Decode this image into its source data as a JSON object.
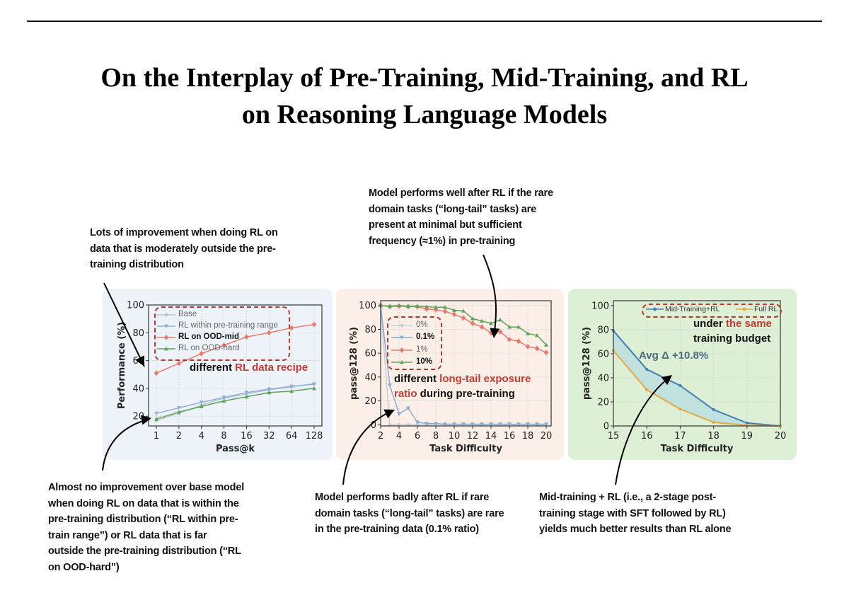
{
  "title": {
    "line1": "On the Interplay of Pre-Training, Mid-Training, and RL",
    "line2": "on Reasoning Language Models"
  },
  "annotations": {
    "top_left": [
      "Lots of improvement when doing RL on",
      "data that is moderately outside the pre-",
      "training distribution"
    ],
    "top_middle": [
      "Model performs well after RL if the rare",
      "domain tasks (“long-tail” tasks) are",
      "present at minimal but sufficient",
      "frequency (≈1%) in pre-training"
    ],
    "bottom_left": [
      "Almost no improvement over base model",
      "when doing RL on data that is within the",
      "pre-training distribution (“RL within pre-",
      "train range”) or RL data that is far",
      "outside the pre-training distribution (“RL",
      "on OOD-hard”)"
    ],
    "bottom_middle": [
      "Model performs badly after RL if rare",
      "domain tasks (“long-tail” tasks) are rare",
      "in the pre-training data (0.1% ratio)"
    ],
    "bottom_right": [
      "Mid-training + RL (i.e., a 2-stage post-",
      "training stage with SFT followed by RL)",
      "yields much better results than RL alone"
    ]
  },
  "colors": {
    "panel1_bg": "#eef3f9",
    "panel2_bg": "#fbefe7",
    "panel3_bg": "#ddefd5",
    "highlight": "#c23b32"
  },
  "chart_data": [
    {
      "type": "line",
      "xlabel": "Pass@k",
      "ylabel": "Performance (%)",
      "categories": [
        "1",
        "2",
        "4",
        "8",
        "16",
        "32",
        "64",
        "128"
      ],
      "ylim": [
        13,
        100
      ],
      "yticks": [
        20,
        40,
        60,
        80,
        100
      ],
      "grid": true,
      "legend": "top-left",
      "note": {
        "prefix": "different ",
        "highlight": "RL data recipe"
      },
      "series": [
        {
          "name": "Base",
          "color": "#b9c4d0",
          "marker": "circle",
          "bold": false,
          "values": [
            17,
            22,
            28,
            33,
            36,
            39,
            41,
            43.5
          ]
        },
        {
          "name": "RL within pre-training range",
          "color": "#8fb0d6",
          "marker": "triangle-down",
          "bold": false,
          "values": [
            22,
            26,
            30,
            33.5,
            37,
            39.5,
            41.5,
            43
          ]
        },
        {
          "name": "RL on OOD-mid",
          "color": "#e9796b",
          "marker": "diamond",
          "bold": true,
          "values": [
            51,
            58,
            65,
            71,
            77,
            80,
            83.5,
            86
          ]
        },
        {
          "name": "RL on OOD-hard",
          "color": "#5ea35a",
          "marker": "triangle-up",
          "bold": false,
          "values": [
            18,
            23,
            27,
            31,
            34,
            37,
            38,
            40
          ]
        }
      ]
    },
    {
      "type": "line",
      "xlabel": "Task Difficulty",
      "ylabel": "pass@128 (%)",
      "x": [
        2,
        3,
        4,
        5,
        6,
        7,
        8,
        9,
        10,
        11,
        12,
        13,
        14,
        15,
        16,
        17,
        18,
        19,
        20
      ],
      "xlim": [
        2,
        20
      ],
      "xticks": [
        2,
        4,
        6,
        8,
        10,
        12,
        14,
        16,
        18,
        20
      ],
      "ylim": [
        -1,
        104
      ],
      "yticks": [
        0,
        20,
        40,
        60,
        80,
        100
      ],
      "grid": true,
      "legend": "upper-left",
      "note": {
        "line1_prefix": "different ",
        "line1_highlight": "long-tail exposure",
        "line2_highlight": "ratio",
        "line2_suffix": " during pre-training"
      },
      "series": [
        {
          "name": "0%",
          "color": "#c9cdd2",
          "marker": "circle",
          "bold": false,
          "values": [
            100,
            0,
            0,
            0,
            0,
            0,
            0,
            0,
            0,
            0,
            0,
            0,
            0,
            0,
            0,
            0,
            0,
            0,
            0
          ]
        },
        {
          "name": "0.1%",
          "color": "#86aed8",
          "marker": "triangle-down",
          "bold": true,
          "values": [
            100,
            33,
            9,
            14,
            2,
            1,
            1,
            0.5,
            0.5,
            0.5,
            0.5,
            0.5,
            0.5,
            0.5,
            0.5,
            0.5,
            0.5,
            0.5,
            0.5
          ]
        },
        {
          "name": "1%",
          "color": "#e9796b",
          "marker": "diamond",
          "bold": false,
          "values": [
            100,
            99,
            99.5,
            99,
            99,
            97,
            96.5,
            95,
            92.5,
            89.5,
            85,
            82,
            77,
            78,
            71.5,
            70,
            65.5,
            64,
            60.5
          ]
        },
        {
          "name": "10%",
          "color": "#5ea35a",
          "marker": "triangle-up",
          "bold": true,
          "values": [
            100,
            99.5,
            100,
            99.5,
            99.5,
            99,
            98.5,
            98.5,
            96,
            95.5,
            89,
            87,
            85,
            88,
            82,
            82,
            76.5,
            75,
            67
          ]
        }
      ]
    },
    {
      "type": "area",
      "xlabel": "Task Difficulty",
      "ylabel": "pass@128 (%)",
      "x": [
        15,
        16,
        17,
        18,
        19,
        20
      ],
      "xlim": [
        15,
        20
      ],
      "xticks": [
        15,
        16,
        17,
        18,
        19,
        20
      ],
      "ylim": [
        0,
        104
      ],
      "yticks": [
        0,
        20,
        40,
        60,
        80,
        100
      ],
      "grid": true,
      "legend": "top-right",
      "note": {
        "line1_prefix": "under ",
        "line1_highlight": "the same",
        "line2": "training budget"
      },
      "avg_delta": "Avg Δ +10.8%",
      "series": [
        {
          "name": "Mid-Training+RL",
          "color": "#3f7fb8",
          "marker": "circle",
          "values": [
            79,
            47,
            33.5,
            13.5,
            2.5,
            0
          ]
        },
        {
          "name": "Full RL",
          "color": "#e5a944",
          "marker": "circle",
          "values": [
            62.5,
            30,
            14,
            3,
            0.5,
            0
          ]
        }
      ]
    }
  ]
}
